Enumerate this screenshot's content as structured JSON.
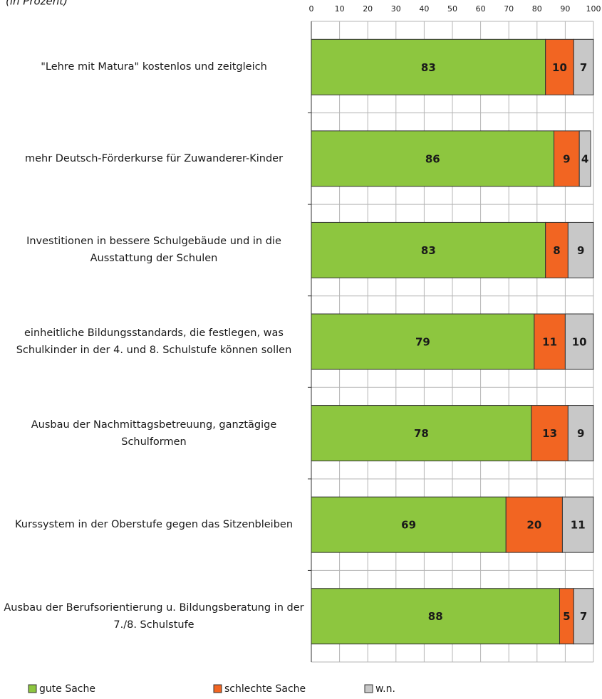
{
  "chart_data": {
    "type": "stacked-barh",
    "subtitle": "(in Prozent)",
    "categories": [
      "\"Lehre mit Matura\" kostenlos und zeitgleich",
      "mehr Deutsch-Förderkurse für Zuwanderer-Kinder",
      "Investitionen in bessere Schulgebäude und in die Ausstattung der Schulen",
      "einheitliche Bildungsstandards, die festlegen, was Schulkinder in der 4. und 8. Schulstufe können sollen",
      "Ausbau der Nachmittagsbetreuung, ganztägige Schulformen",
      "Kurssystem in der Oberstufe gegen das Sitzenbleiben",
      "Ausbau der Berufsorientierung u. Bildungsberatung in der 7./8. Schulstufe"
    ],
    "series": [
      {
        "name": "gute Sache",
        "color": "#8dc63f",
        "values": [
          83,
          86,
          83,
          79,
          78,
          69,
          88
        ]
      },
      {
        "name": "schlechte Sache",
        "color": "#f26522",
        "values": [
          10,
          9,
          8,
          11,
          13,
          20,
          5
        ]
      },
      {
        "name": "w.n.",
        "color": "#c8c8c8",
        "values": [
          7,
          4,
          9,
          10,
          9,
          11,
          7
        ]
      }
    ],
    "xlim": [
      0,
      100
    ],
    "xticks": [
      0,
      10,
      20,
      30,
      40,
      50,
      60,
      70,
      80,
      90,
      100
    ],
    "grid": true,
    "legend": "bottom"
  }
}
